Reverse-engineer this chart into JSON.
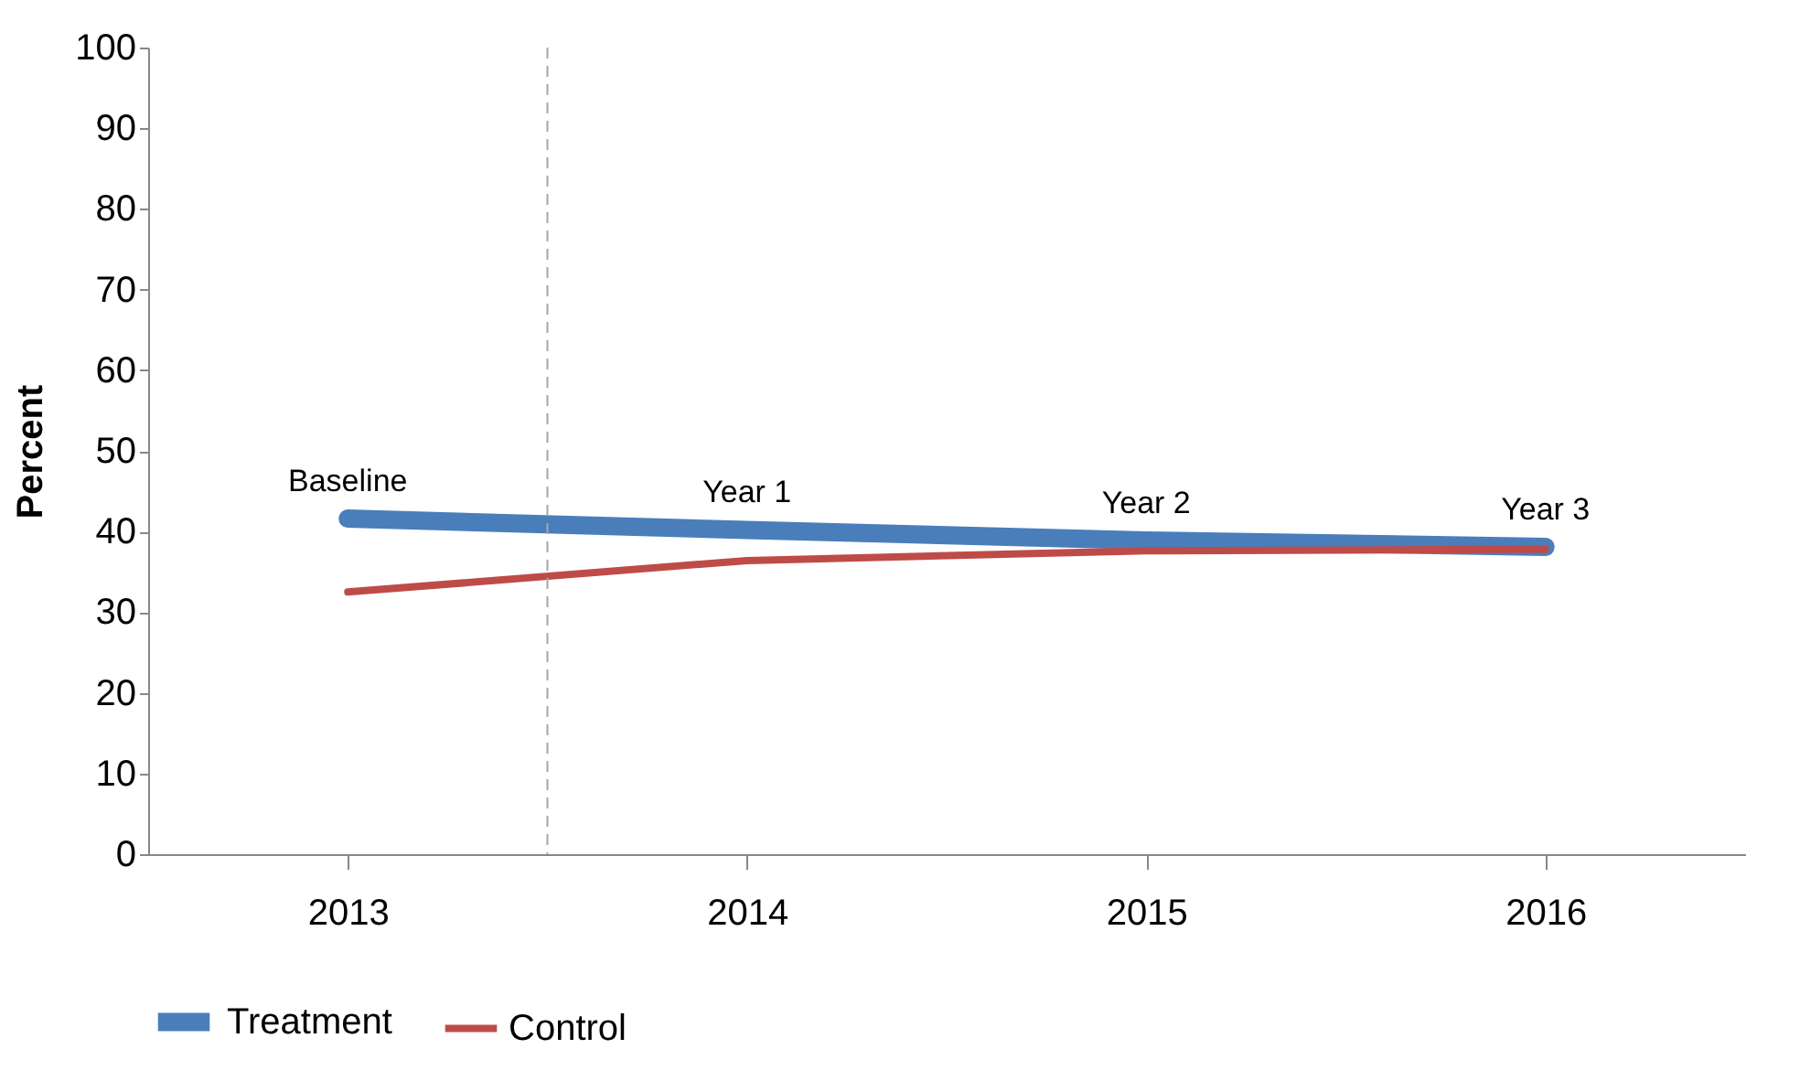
{
  "chart_data": {
    "type": "line",
    "ylabel": "Percent",
    "x": [
      2013,
      2014,
      2015,
      2016
    ],
    "series": [
      {
        "name": "Treatment",
        "color": "#4a7ebb",
        "values": [
          41.6,
          40.2,
          38.9,
          38.1
        ]
      },
      {
        "name": "Control",
        "color": "#be4b48",
        "values": [
          32.5,
          36.4,
          37.6,
          37.8
        ]
      }
    ],
    "xlim": [
      2012.5,
      2016.5
    ],
    "xticks": [
      2013,
      2014,
      2015,
      2016
    ],
    "ylim": [
      0,
      100
    ],
    "yticks": [
      0,
      10,
      20,
      30,
      40,
      50,
      60,
      70,
      80,
      90,
      100
    ],
    "ref_lines": [
      {
        "axis": "x",
        "value": 2013.5,
        "color": "#a6a6a6",
        "line_style": "dashed"
      }
    ],
    "annotations": [
      {
        "text": "Baseline",
        "x": 2013,
        "y": 41.6
      },
      {
        "text": "Year 1",
        "x": 2014,
        "y": 40.2
      },
      {
        "text": "Year 2",
        "x": 2015,
        "y": 38.9
      },
      {
        "text": "Year 3",
        "x": 2016,
        "y": 38.1
      }
    ],
    "grid": false,
    "legend": "bottom",
    "marker": "none",
    "line_style": "solid"
  }
}
